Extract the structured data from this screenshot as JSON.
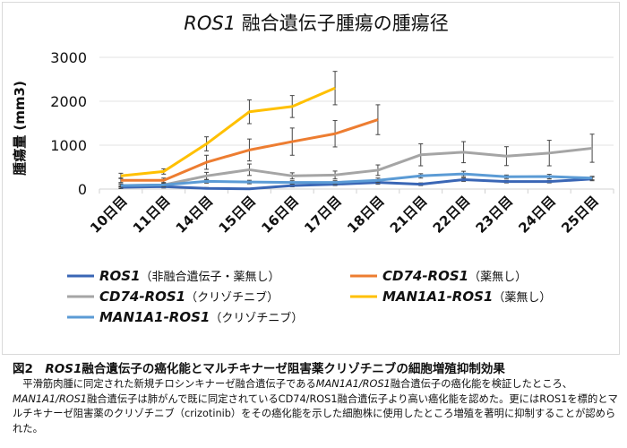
{
  "chart_data": {
    "type": "line",
    "title_italic": "ROS1",
    "title_rest": " 融合遺伝子腫瘍の腫瘍径",
    "ylabel": "腫瘍量 (mm3)",
    "xlabel": "",
    "ylim": [
      0,
      3000
    ],
    "yticks": [
      "0",
      "1000",
      "2000",
      "3000"
    ],
    "grid": true,
    "legend_position": "bottom",
    "categories": [
      "10日目",
      "11日目",
      "14日目",
      "15日目",
      "16日目",
      "17日目",
      "18日目",
      "21日目",
      "22日目",
      "23日目",
      "24日目",
      "25日目"
    ],
    "series": [
      {
        "name_italic": "ROS1",
        "name_rest": "（非融合遺伝子・薬無し）",
        "color": "#3a66b5",
        "values": [
          40,
          55,
          15,
          5,
          80,
          110,
          150,
          110,
          215,
          170,
          170,
          230
        ],
        "errors": [
          30,
          30,
          20,
          15,
          30,
          30,
          40,
          30,
          40,
          30,
          30,
          40
        ]
      },
      {
        "name_italic": "CD74-ROS1",
        "name_rest": "（薬無し）",
        "color": "#ed7d31",
        "values": [
          200,
          200,
          610,
          890,
          1080,
          1260,
          1580,
          null,
          null,
          null,
          null,
          null
        ],
        "errors": [
          50,
          50,
          160,
          250,
          310,
          300,
          340,
          null,
          null,
          null,
          null,
          null
        ]
      },
      {
        "name_italic": "CD74-ROS1",
        "name_rest": "（クリゾチニブ）",
        "color": "#a5a5a5",
        "values": [
          80,
          95,
          300,
          440,
          300,
          320,
          430,
          780,
          840,
          750,
          820,
          930
        ],
        "errors": [
          40,
          40,
          80,
          130,
          70,
          90,
          120,
          250,
          240,
          215,
          290,
          320
        ]
      },
      {
        "name_italic": "MAN1A1-ROS1",
        "name_rest": "（薬無し）",
        "color": "#ffc000",
        "values": [
          300,
          400,
          1030,
          1760,
          1880,
          2300,
          null,
          null,
          null,
          null,
          null,
          null
        ],
        "errors": [
          60,
          60,
          160,
          270,
          250,
          380,
          null,
          null,
          null,
          null,
          null,
          null
        ]
      },
      {
        "name_italic": "MAN1A1-ROS1",
        "name_rest": "（クリゾチニブ）",
        "color": "#5b9bd5",
        "values": [
          80,
          95,
          175,
          160,
          150,
          150,
          200,
          300,
          345,
          280,
          285,
          250
        ],
        "errors": [
          30,
          30,
          40,
          40,
          40,
          40,
          50,
          50,
          60,
          40,
          50,
          40
        ]
      }
    ]
  },
  "caption": {
    "figure_label": "図2　",
    "title_italic": "ROS1",
    "title_rest": "融合遺伝子の癌化能とマルチキナーゼ阻害薬クリゾチニブの細胞増殖抑制効果",
    "body_1": "平滑筋肉腫に同定された新規チロシンキナーゼ融合遺伝子である",
    "body_2_italic": "MAN1A1/ROS1",
    "body_3": "融合遺伝子の癌化能を検証したところ、",
    "body_4_italic": "MAN1A1/ROS1",
    "body_5": "融合遺伝子は肺がんで既に同定されているCD74/ROS1融合遺伝子より高い癌化能を認めた。更にはROS1を標的とマルチキナーゼ阻害薬のクリゾチニブ（crizotinib）をその癌化能を示した細胞株に使用したところ増殖を著明に抑制することが認められた。"
  }
}
